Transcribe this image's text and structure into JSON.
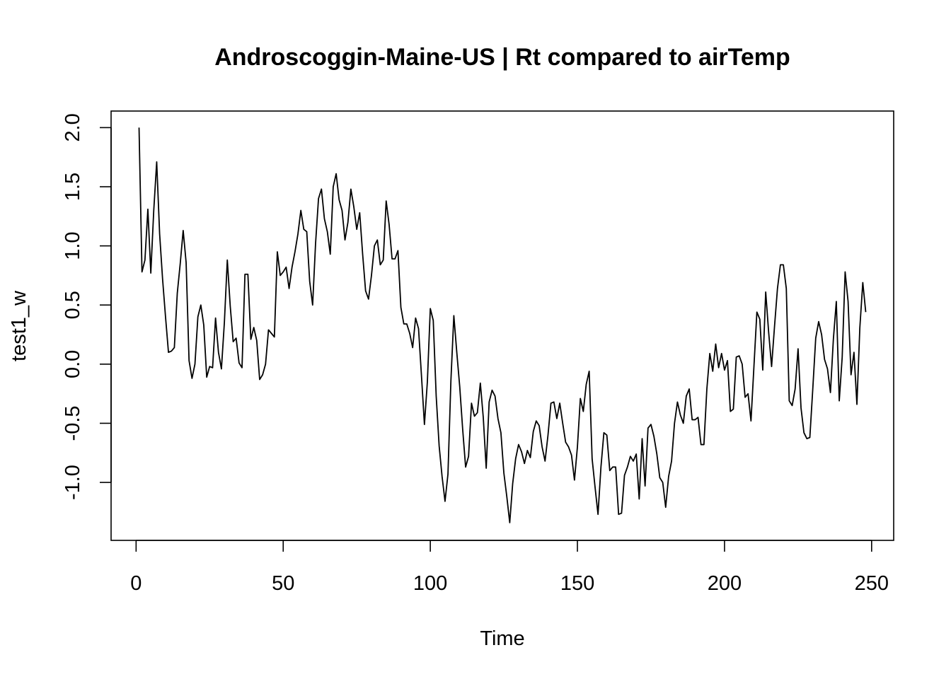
{
  "chart_data": {
    "type": "line",
    "title": "Androscoggin-Maine-US | Rt compared to airTemp",
    "xlabel": "Time",
    "ylabel": "test1_w",
    "xlim": [
      -8.5,
      257.5
    ],
    "ylim": [
      -1.49,
      2.14
    ],
    "x_ticks": [
      0,
      50,
      100,
      150,
      200,
      250
    ],
    "y_ticks": [
      -1.0,
      -0.5,
      0.0,
      0.5,
      1.0,
      1.5,
      2.0
    ],
    "x_tick_labels": [
      "0",
      "50",
      "100",
      "150",
      "200",
      "250"
    ],
    "y_tick_labels": [
      "-1.0",
      "-0.5",
      "0.0",
      "0.5",
      "1.0",
      "1.5",
      "2.0"
    ],
    "grid": false,
    "legend": "none",
    "line_color": "#000000",
    "series": [
      {
        "x_start": 1,
        "x_step": 1,
        "values": [
          2.0,
          0.78,
          0.88,
          1.31,
          0.77,
          1.3,
          1.71,
          1.1,
          0.72,
          0.4,
          0.1,
          0.11,
          0.14,
          0.6,
          0.85,
          1.13,
          0.86,
          0.03,
          -0.12,
          0.0,
          0.4,
          0.5,
          0.33,
          -0.11,
          -0.02,
          -0.03,
          0.39,
          0.1,
          -0.04,
          0.35,
          0.88,
          0.49,
          0.19,
          0.22,
          0.01,
          -0.03,
          0.76,
          0.76,
          0.21,
          0.31,
          0.2,
          -0.13,
          -0.09,
          0.0,
          0.29,
          0.26,
          0.23,
          0.95,
          0.75,
          0.78,
          0.82,
          0.64,
          0.82,
          0.95,
          1.1,
          1.3,
          1.14,
          1.12,
          0.7,
          0.5,
          1.02,
          1.4,
          1.48,
          1.23,
          1.12,
          0.93,
          1.5,
          1.61,
          1.39,
          1.3,
          1.05,
          1.2,
          1.48,
          1.33,
          1.14,
          1.28,
          0.93,
          0.62,
          0.55,
          0.75,
          1.0,
          1.05,
          0.84,
          0.88,
          1.38,
          1.18,
          0.89,
          0.89,
          0.96,
          0.48,
          0.34,
          0.34,
          0.26,
          0.14,
          0.39,
          0.3,
          -0.1,
          -0.51,
          -0.15,
          0.47,
          0.37,
          -0.27,
          -0.69,
          -0.95,
          -1.16,
          -0.93,
          -0.14,
          0.41,
          0.1,
          -0.19,
          -0.55,
          -0.87,
          -0.78,
          -0.33,
          -0.44,
          -0.41,
          -0.16,
          -0.45,
          -0.88,
          -0.32,
          -0.22,
          -0.27,
          -0.46,
          -0.58,
          -0.92,
          -1.12,
          -1.34,
          -1.01,
          -0.8,
          -0.68,
          -0.74,
          -0.84,
          -0.73,
          -0.79,
          -0.57,
          -0.48,
          -0.52,
          -0.7,
          -0.82,
          -0.6,
          -0.33,
          -0.32,
          -0.46,
          -0.33,
          -0.5,
          -0.66,
          -0.7,
          -0.77,
          -0.98,
          -0.7,
          -0.29,
          -0.4,
          -0.17,
          -0.06,
          -0.8,
          -1.04,
          -1.27,
          -0.87,
          -0.58,
          -0.6,
          -0.9,
          -0.87,
          -0.87,
          -1.27,
          -1.26,
          -0.94,
          -0.87,
          -0.78,
          -0.82,
          -0.76,
          -1.14,
          -0.63,
          -1.03,
          -0.54,
          -0.51,
          -0.61,
          -0.76,
          -0.96,
          -1.0,
          -1.21,
          -0.95,
          -0.82,
          -0.5,
          -0.32,
          -0.43,
          -0.5,
          -0.27,
          -0.21,
          -0.47,
          -0.47,
          -0.45,
          -0.68,
          -0.68,
          -0.21,
          0.09,
          -0.06,
          0.17,
          -0.03,
          0.09,
          -0.05,
          0.03,
          -0.4,
          -0.38,
          0.06,
          0.07,
          0.0,
          -0.28,
          -0.25,
          -0.48,
          -0.02,
          0.44,
          0.38,
          -0.05,
          0.61,
          0.27,
          -0.02,
          0.32,
          0.64,
          0.84,
          0.84,
          0.64,
          -0.31,
          -0.35,
          -0.21,
          0.13,
          -0.37,
          -0.58,
          -0.63,
          -0.62,
          -0.21,
          0.22,
          0.36,
          0.25,
          0.04,
          -0.04,
          -0.24,
          0.21,
          0.53,
          -0.31,
          0.06,
          0.78,
          0.53,
          -0.09,
          0.1,
          -0.34,
          0.31,
          0.69,
          0.44
        ]
      }
    ]
  }
}
